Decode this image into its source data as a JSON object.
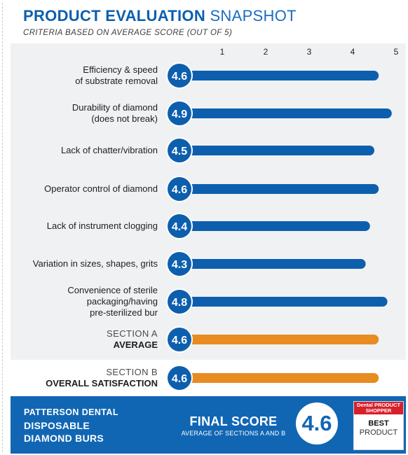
{
  "header": {
    "title_strong": "PRODUCT EVALUATION",
    "title_light": "SNAPSHOT",
    "subtitle": "CRITERIA BASED ON AVERAGE SCORE (OUT OF 5)"
  },
  "colors": {
    "bar_blue": "#0d5fae",
    "bar_orange": "#e88b21",
    "footer_blue": "#1166b4",
    "badge_red": "#d81f2a"
  },
  "chart_data": {
    "type": "bar",
    "orientation": "horizontal",
    "xlim": [
      0,
      5
    ],
    "x_ticks": [
      "1",
      "2",
      "3",
      "4",
      "5"
    ],
    "grid": false,
    "rows": [
      {
        "label_lines": [
          "Efficiency & speed",
          "of substrate removal"
        ],
        "value": 4.6,
        "value_label": "4.6",
        "color": "blue"
      },
      {
        "label_lines": [
          "Durability of diamond",
          "(does not break)"
        ],
        "value": 4.9,
        "value_label": "4.9",
        "color": "blue"
      },
      {
        "label_lines": [
          "Lack of chatter/vibration"
        ],
        "value": 4.5,
        "value_label": "4.5",
        "color": "blue"
      },
      {
        "label_lines": [
          "Operator control of diamond"
        ],
        "value": 4.6,
        "value_label": "4.6",
        "color": "blue"
      },
      {
        "label_lines": [
          "Lack of instrument clogging"
        ],
        "value": 4.4,
        "value_label": "4.4",
        "color": "blue"
      },
      {
        "label_lines": [
          "Variation in sizes, shapes, grits"
        ],
        "value": 4.3,
        "value_label": "4.3",
        "color": "blue"
      },
      {
        "label_lines": [
          "Convenience of sterile",
          "packaging/having",
          "pre-sterilized bur"
        ],
        "value": 4.8,
        "value_label": "4.8",
        "color": "blue"
      },
      {
        "label_lines": [
          "SECTION A",
          "AVERAGE"
        ],
        "value": 4.6,
        "value_label": "4.6",
        "color": "orange"
      },
      {
        "label_lines": [
          "SECTION B",
          "OVERALL SATISFACTION"
        ],
        "value": 4.6,
        "value_label": "4.6",
        "color": "orange"
      }
    ]
  },
  "footer": {
    "brand": "PATTERSON DENTAL",
    "product_line1": "DISPOSABLE",
    "product_line2": "DIAMOND BURS",
    "final_title": "FINAL SCORE",
    "final_sub": "AVERAGE OF SECTIONS A AND B",
    "final_value": "4.6",
    "badge_top": "Dental PRODUCT SHOPPER",
    "badge_best": "BEST",
    "badge_product": "PRODUCT"
  }
}
